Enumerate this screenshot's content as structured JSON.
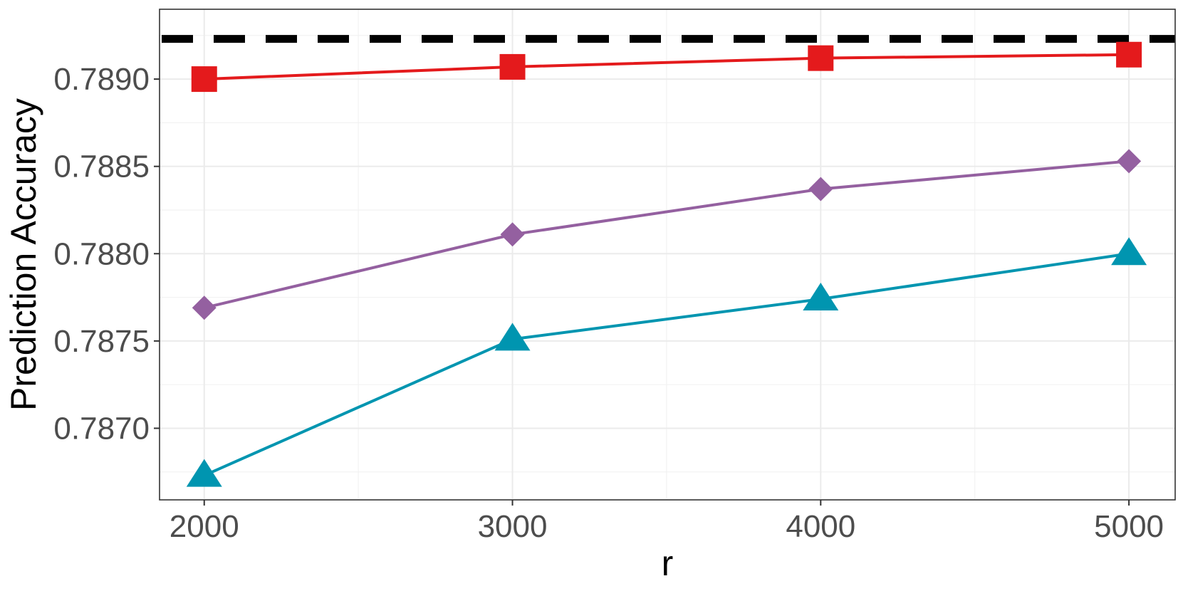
{
  "chart_data": {
    "type": "line",
    "xlabel": "r",
    "ylabel": "Prediction Accuracy",
    "x": [
      2000,
      3000,
      4000,
      5000
    ],
    "xlim": [
      1855,
      5150
    ],
    "ylim": [
      0.78659,
      0.7894
    ],
    "xticks": [
      2000,
      3000,
      4000,
      5000
    ],
    "xtick_labels": [
      "2000",
      "3000",
      "4000",
      "5000"
    ],
    "yticks": [
      0.787,
      0.7875,
      0.788,
      0.7885,
      0.789
    ],
    "ytick_labels": [
      "0.7870",
      "0.7875",
      "0.7880",
      "0.7885",
      "0.7890"
    ],
    "grid": true,
    "legend": "none",
    "reference_line": {
      "y": 0.78923,
      "style": "dashed",
      "color": "#000000"
    },
    "series": [
      {
        "values": [
          0.789,
          0.78907,
          0.78912,
          0.78914
        ],
        "color": "#e41a1c",
        "marker": "square"
      },
      {
        "values": [
          0.78769,
          0.78811,
          0.78837,
          0.78853
        ],
        "color": "#9460a0",
        "marker": "diamond"
      },
      {
        "values": [
          0.78673,
          0.78751,
          0.78774,
          0.788
        ],
        "color": "#0095b0",
        "marker": "triangle"
      }
    ]
  }
}
